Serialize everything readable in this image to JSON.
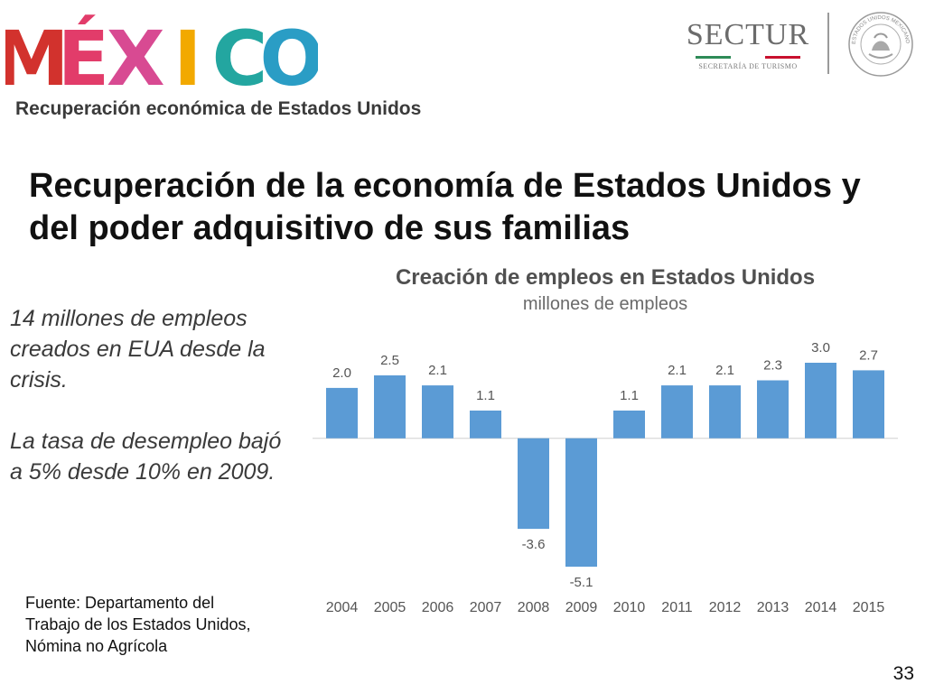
{
  "header": {
    "logo_text": "MÉXICO",
    "logo_letters": [
      {
        "ch": "M",
        "color": "#d2322d"
      },
      {
        "ch": "É",
        "color": "#e23c6a"
      },
      {
        "ch": "X",
        "color": "#d84a92"
      },
      {
        "ch": "I",
        "color": "#f2a900"
      },
      {
        "ch": "C",
        "color": "#23a6a0"
      },
      {
        "ch": "O",
        "color": "#2a9dc5"
      }
    ],
    "sectur": {
      "name": "SECTUR",
      "subtitle": "SECRETARÍA DE TURISMO",
      "stripe_colors": [
        "#2e8b57",
        "#ffffff",
        "#c8102e"
      ]
    },
    "seal_text": "ESTADOS UNIDOS MEXICANOS"
  },
  "section_label": "Recuperación económica de Estados Unidos",
  "main_title": "Recuperación de la economía de Estados Unidos y del poder adquisitivo de sus familias",
  "side_notes": {
    "first": "14 millones de empleos creados en EUA desde la crisis.",
    "second": "La tasa de desempleo bajó a 5% desde 10% en 2009."
  },
  "source": "Fuente: Departamento del Trabajo de los Estados Unidos, Nómina no Agrícola",
  "page_number": "33",
  "chart_data": {
    "type": "bar",
    "title": "Creación de empleos en Estados Unidos",
    "subtitle": "millones de empleos",
    "categories": [
      "2004",
      "2005",
      "2006",
      "2007",
      "2008",
      "2009",
      "2010",
      "2011",
      "2012",
      "2013",
      "2014",
      "2015"
    ],
    "values": [
      2.0,
      2.5,
      2.1,
      1.1,
      -3.6,
      -5.1,
      1.1,
      2.1,
      2.1,
      2.3,
      3.0,
      2.7
    ],
    "value_labels": [
      "2.0",
      "2.5",
      "2.1",
      "1.1",
      "-3.6",
      "-5.1",
      "1.1",
      "2.1",
      "2.1",
      "2.3",
      "3.0",
      "2.7"
    ],
    "bar_color": "#5b9bd5",
    "ylim": [
      -5.1,
      3.0
    ],
    "grid": false,
    "legend": "none"
  }
}
